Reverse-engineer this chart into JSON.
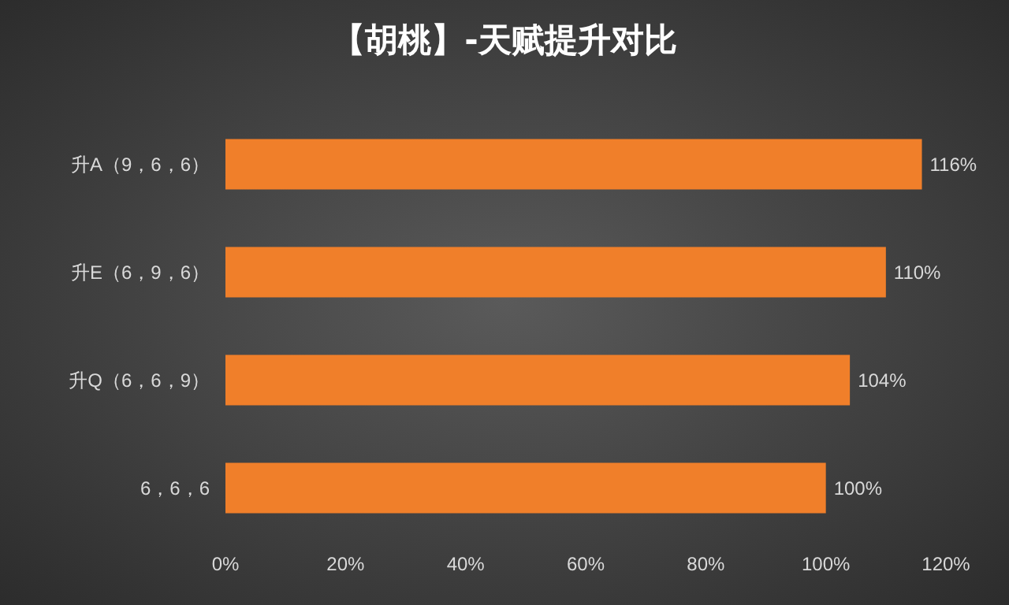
{
  "chart_data": {
    "type": "bar",
    "orientation": "horizontal",
    "title": "【胡桃】-天赋提升对比",
    "categories": [
      "升A（9，6，6）",
      "升E（6，9，6）",
      "升Q（6，6，9）",
      "6，6，6"
    ],
    "values": [
      116,
      110,
      104,
      100
    ],
    "color": "#f07f2a",
    "value_labels": [
      "116%",
      "110%",
      "104%",
      "100%"
    ],
    "xlim": [
      0,
      120
    ],
    "xticks": [
      {
        "value": 0,
        "label": "0%"
      },
      {
        "value": 20,
        "label": "20%"
      },
      {
        "value": 40,
        "label": "40%"
      },
      {
        "value": 60,
        "label": "60%"
      },
      {
        "value": 80,
        "label": "80%"
      },
      {
        "value": 100,
        "label": "100%"
      },
      {
        "value": 120,
        "label": "120%"
      }
    ],
    "grid": false
  }
}
